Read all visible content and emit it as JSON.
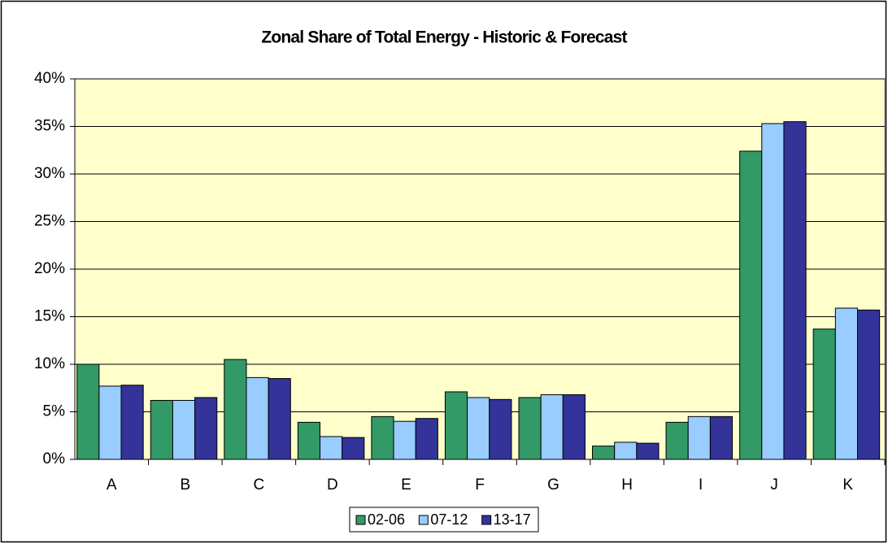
{
  "chart_data": {
    "type": "bar",
    "title": "Zonal Share of Total Energy - Historic & Forecast",
    "categories": [
      "A",
      "B",
      "C",
      "D",
      "E",
      "F",
      "G",
      "H",
      "I",
      "J",
      "K"
    ],
    "series": [
      {
        "name": "02-06",
        "color": "#339966",
        "values": [
          10.0,
          6.2,
          10.5,
          3.9,
          4.5,
          7.1,
          6.5,
          1.4,
          3.9,
          32.4,
          13.7
        ]
      },
      {
        "name": "07-12",
        "color": "#99ccff",
        "values": [
          7.7,
          6.2,
          8.6,
          2.4,
          4.0,
          6.5,
          6.8,
          1.8,
          4.5,
          35.3,
          15.9
        ]
      },
      {
        "name": "13-17",
        "color": "#333399",
        "values": [
          7.8,
          6.5,
          8.5,
          2.3,
          4.3,
          6.3,
          6.8,
          1.7,
          4.5,
          35.5,
          15.7
        ]
      }
    ],
    "ylim": [
      0,
      40
    ],
    "yticks": [
      {
        "value": 0,
        "label": "0%"
      },
      {
        "value": 5,
        "label": "5%"
      },
      {
        "value": 10,
        "label": "10%"
      },
      {
        "value": 15,
        "label": "15%"
      },
      {
        "value": 20,
        "label": "20%"
      },
      {
        "value": 25,
        "label": "25%"
      },
      {
        "value": 30,
        "label": "30%"
      },
      {
        "value": 35,
        "label": "35%"
      },
      {
        "value": 40,
        "label": "40%"
      }
    ],
    "grid": true,
    "legend": "bottom",
    "plot_background": "#ffffcc"
  }
}
